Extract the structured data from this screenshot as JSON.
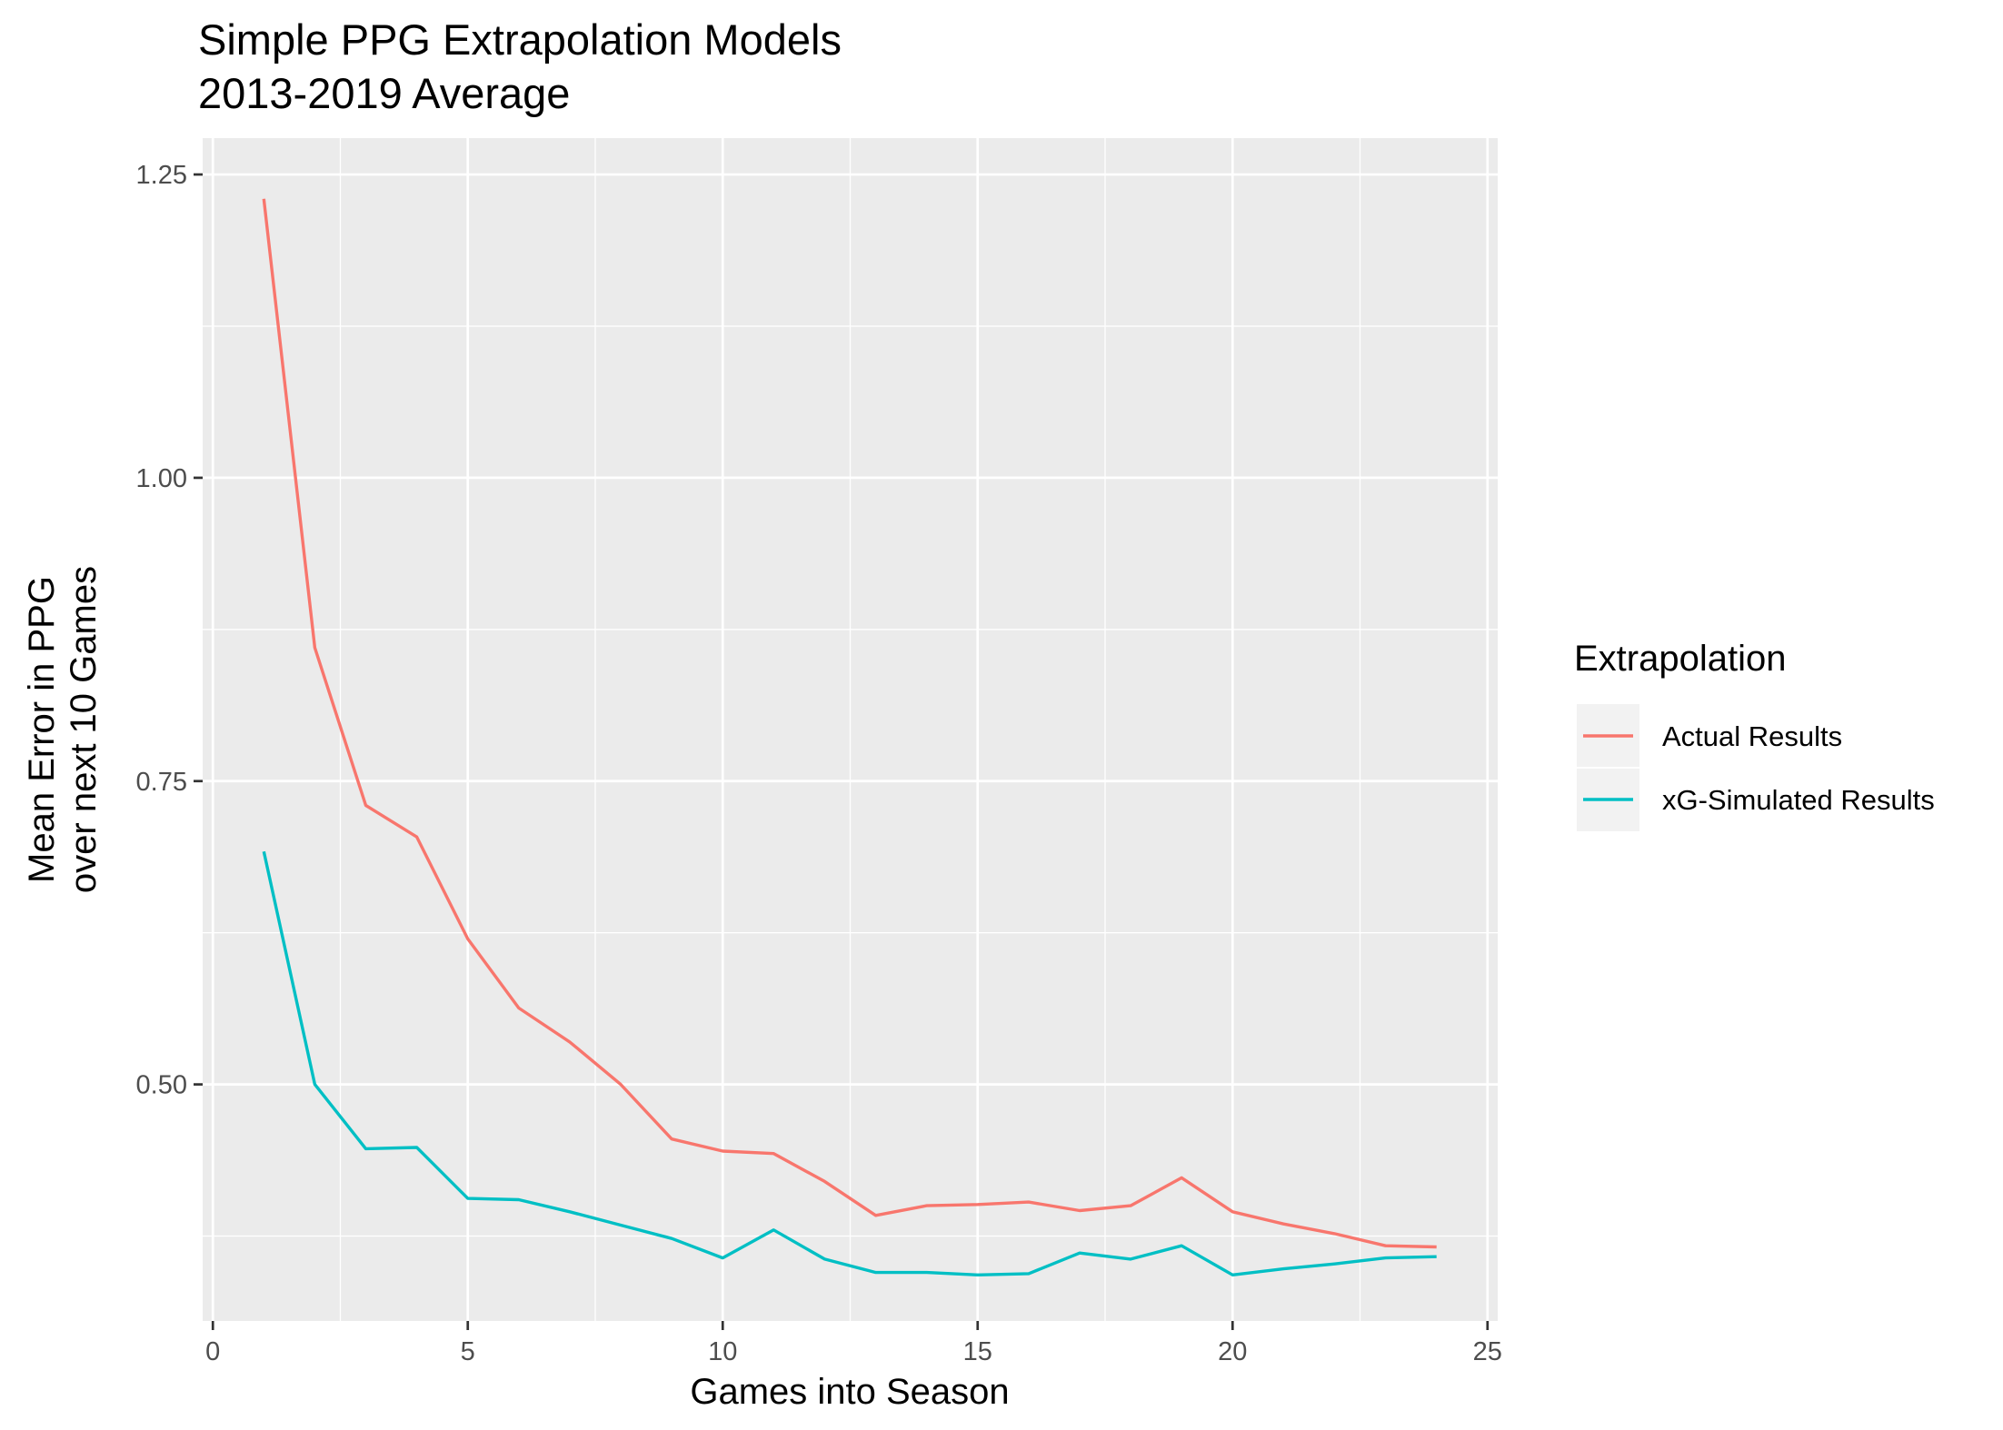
{
  "chart_data": {
    "type": "line",
    "title": "Simple PPG Extrapolation Models",
    "subtitle": "2013-2019 Average",
    "xlabel": "Games into Season",
    "ylabel_lines": [
      "Mean Error in PPG",
      "over next 10 Games"
    ],
    "xlim": [
      -0.2,
      25.2
    ],
    "ylim": [
      0.305,
      1.28
    ],
    "x_ticks": [
      0,
      5,
      10,
      15,
      20,
      25
    ],
    "x_tick_labels": [
      "0",
      "5",
      "10",
      "15",
      "20",
      "25"
    ],
    "y_ticks": [
      0.5,
      0.75,
      1.0,
      1.25
    ],
    "y_tick_labels": [
      "0.50",
      "0.75",
      "1.00",
      "1.25"
    ],
    "grid": true,
    "legend_position": "right",
    "legend_title": "Extrapolation",
    "x": [
      1,
      2,
      3,
      4,
      5,
      6,
      7,
      8,
      9,
      10,
      11,
      12,
      13,
      14,
      15,
      16,
      17,
      18,
      19,
      20,
      21,
      22,
      23,
      24
    ],
    "series": [
      {
        "name": "Actual Results",
        "color": "#F8766D",
        "values": [
          1.23,
          0.86,
          0.73,
          0.704,
          0.62,
          0.563,
          0.535,
          0.5,
          0.455,
          0.445,
          0.443,
          0.42,
          0.392,
          0.4,
          0.401,
          0.403,
          0.396,
          0.4,
          0.423,
          0.395,
          0.385,
          0.377,
          0.367,
          0.366
        ]
      },
      {
        "name": "xG-Simulated Results",
        "color": "#00BFC4",
        "values": [
          0.692,
          0.5,
          0.447,
          0.448,
          0.406,
          0.405,
          0.395,
          0.384,
          0.373,
          0.357,
          0.38,
          0.356,
          0.345,
          0.345,
          0.343,
          0.344,
          0.361,
          0.356,
          0.367,
          0.343,
          0.348,
          0.352,
          0.357,
          0.358
        ]
      }
    ]
  }
}
